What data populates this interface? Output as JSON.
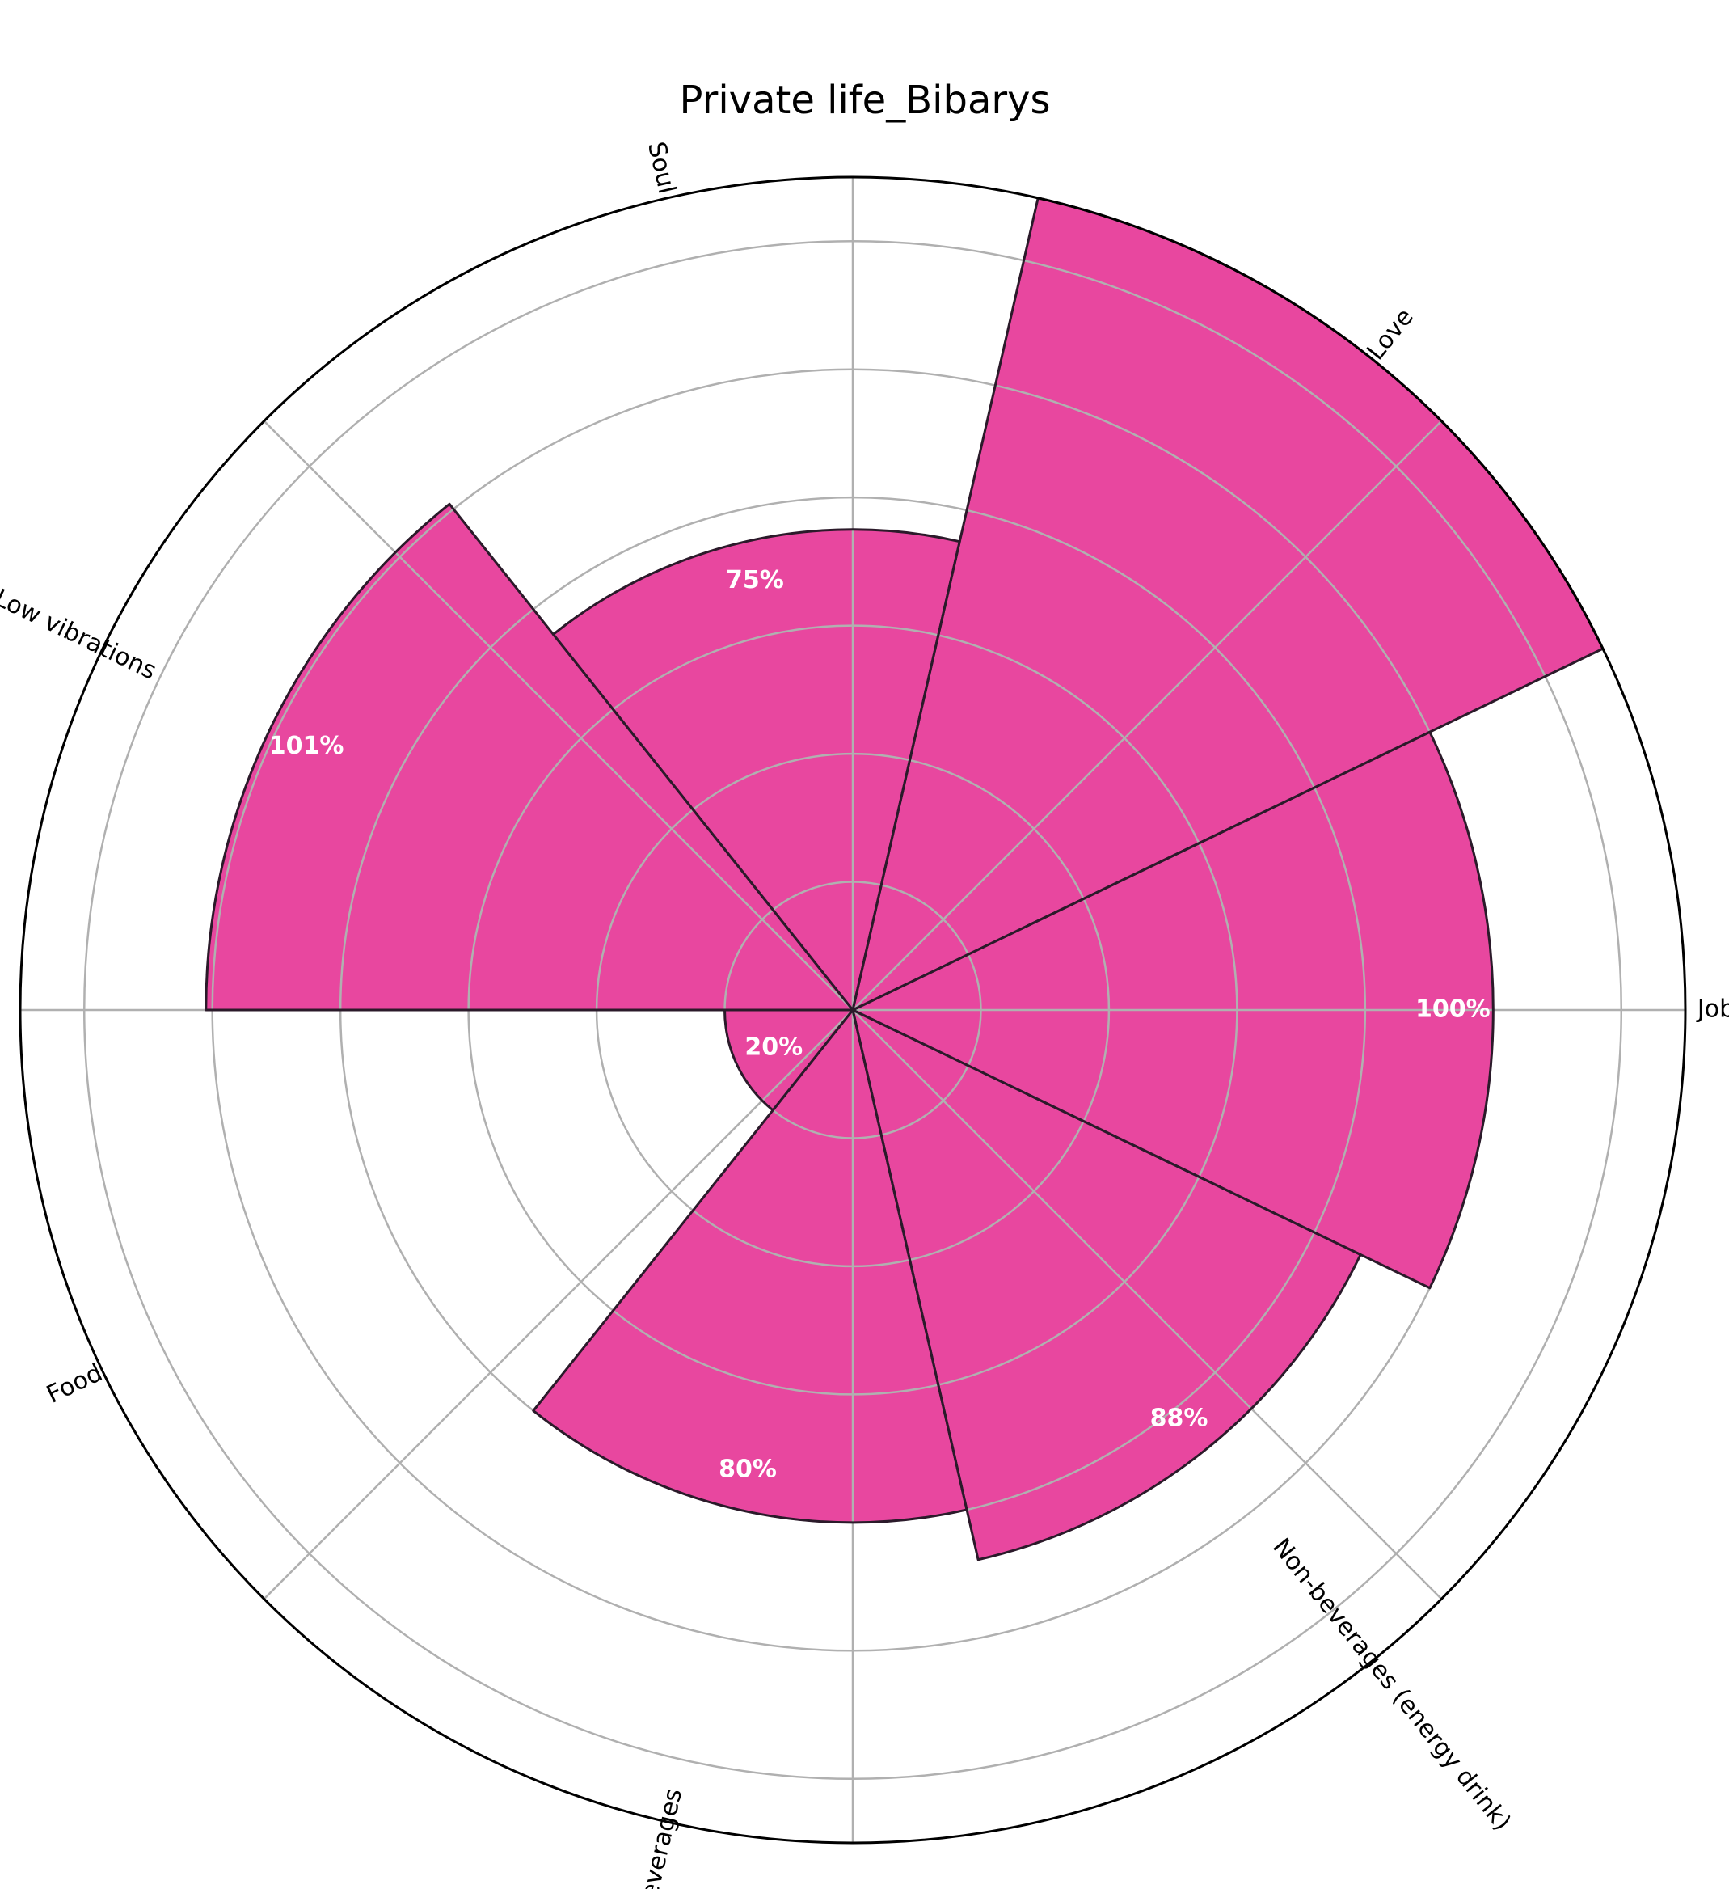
{
  "chart_data": {
    "type": "bar",
    "subtype": "polar",
    "title": "Private life_Bibarys",
    "categories": [
      "Job",
      "Love",
      "Soul",
      "Low vibrations",
      "Food",
      "Beverages",
      "Non-beverages (energy drink)"
    ],
    "values": [
      100,
      130,
      75,
      101,
      20,
      80,
      88
    ],
    "value_labels": [
      "100%",
      "",
      "75%",
      "101%",
      "20%",
      "80%",
      "88%"
    ],
    "rlim": [
      0,
      130
    ],
    "rgrid_step": 20,
    "grid": true,
    "bar_color": "#e8479f",
    "edge_color": "#2b1a2a"
  }
}
